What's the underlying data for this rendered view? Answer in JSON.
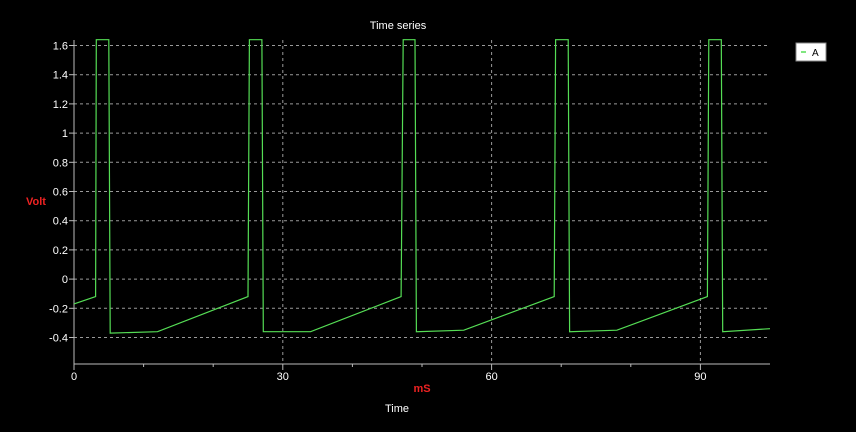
{
  "chart_data": {
    "type": "line",
    "title": "Time series",
    "subtitle": "Time",
    "xlabel": "mS",
    "ylabel": "Volt",
    "xlim": [
      0,
      100
    ],
    "ylim": [
      -0.56,
      1.64
    ],
    "xticks": [
      0,
      30,
      60,
      90
    ],
    "yticks": [
      -0.4,
      -0.2,
      0,
      0.2,
      0.4,
      0.6,
      0.8,
      1,
      1.2,
      1.4,
      1.6
    ],
    "ytick_labels": [
      "-0.4",
      "-0.2",
      "0",
      "0.2",
      "0.4",
      "0.6",
      "0.8",
      "1",
      "1.2",
      "1.4",
      "1.6"
    ],
    "grid": true,
    "legend_position": "top-right",
    "colors": {
      "background": "#000000",
      "series": "#55dd55",
      "axis_text": "#ffffff",
      "label": "#ee2222",
      "grid": "#9a9a9a"
    },
    "series": [
      {
        "name": "A",
        "x": [
          0,
          3.1,
          3.2,
          5.0,
          5.2,
          12,
          25.0,
          25.2,
          27.0,
          27.2,
          34,
          47.0,
          47.3,
          49.0,
          49.2,
          56,
          69.0,
          69.2,
          71.0,
          71.2,
          78,
          91.0,
          91.2,
          93.0,
          93.2,
          100
        ],
        "y": [
          -0.17,
          -0.12,
          1.64,
          1.64,
          -0.37,
          -0.36,
          -0.12,
          1.64,
          1.64,
          -0.36,
          -0.36,
          -0.12,
          1.64,
          1.64,
          -0.36,
          -0.35,
          -0.12,
          1.64,
          1.64,
          -0.36,
          -0.35,
          -0.12,
          1.64,
          1.64,
          -0.36,
          -0.34
        ]
      }
    ]
  }
}
